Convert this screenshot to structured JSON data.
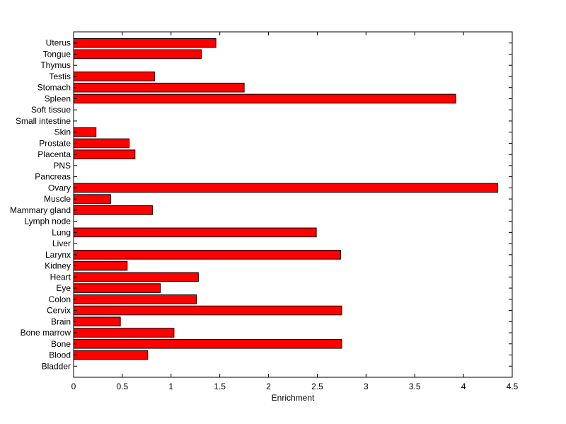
{
  "chart_data": {
    "type": "bar",
    "orientation": "horizontal",
    "categories": [
      "Bladder",
      "Blood",
      "Bone",
      "Bone marrow",
      "Brain",
      "Cervix",
      "Colon",
      "Eye",
      "Heart",
      "Kidney",
      "Larynx",
      "Liver",
      "Lung",
      "Lymph node",
      "Mammary gland",
      "Muscle",
      "Ovary",
      "Pancreas",
      "PNS",
      "Placenta",
      "Prostate",
      "Skin",
      "Small intestine",
      "Soft tissue",
      "Spleen",
      "Stomach",
      "Testis",
      "Thymus",
      "Tongue",
      "Uterus"
    ],
    "values": [
      0,
      0.76,
      2.75,
      1.03,
      0.48,
      2.75,
      1.26,
      0.89,
      1.28,
      0.55,
      2.74,
      0,
      2.49,
      0,
      0.81,
      0.38,
      4.35,
      0,
      0,
      0.63,
      0.57,
      0.23,
      0,
      0,
      3.92,
      1.75,
      0.83,
      0,
      1.31,
      1.46
    ],
    "title": "",
    "xlabel": "Enrichment",
    "ylabel": "",
    "xlim": [
      0,
      4.5
    ],
    "xticks": [
      "0",
      "0.5",
      "1",
      "1.5",
      "2",
      "2.5",
      "3",
      "3.5",
      "4",
      "4.5"
    ],
    "grid": false,
    "bar_color": "#ff0000",
    "edge_color": "#000000"
  }
}
